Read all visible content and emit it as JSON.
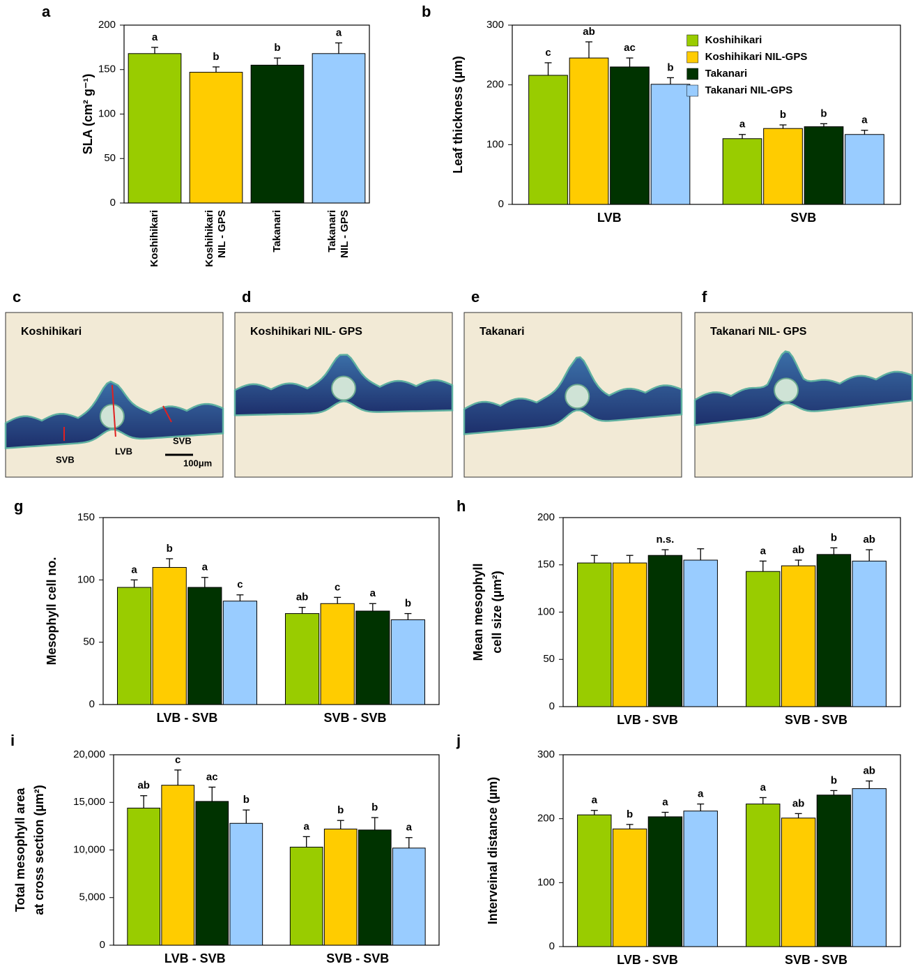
{
  "chart_data": [
    {
      "type": "bar",
      "panel": "a",
      "ylabel": [
        "SLA (cm² g⁻¹)"
      ],
      "categories": [
        [
          "Koshihikari"
        ],
        [
          "Koshihikari",
          "NIL - GPS"
        ],
        [
          "Takanari"
        ],
        [
          "Takanari",
          "NIL - GPS"
        ]
      ],
      "values": [
        168,
        147,
        155,
        168
      ],
      "errors": [
        7,
        6,
        8,
        12
      ],
      "letters": [
        "a",
        "b",
        "b",
        "a"
      ],
      "colors": [
        "#99cc00",
        "#ffcc00",
        "#003300",
        "#99ccff"
      ],
      "ylim": [
        0,
        200
      ],
      "yticks": [
        0,
        50,
        100,
        150,
        200
      ]
    },
    {
      "type": "bar",
      "panel": "b",
      "ylabel": [
        "Leaf thickness (µm)"
      ],
      "categories": [
        "LVB",
        "SVB"
      ],
      "legend": "upper right",
      "series": [
        {
          "name": "Koshihikari",
          "color": "#99cc00",
          "values": [
            216,
            110
          ],
          "errors": [
            21,
            7
          ],
          "letters": [
            "c",
            "a"
          ]
        },
        {
          "name": "Koshihikari NIL-GPS",
          "color": "#ffcc00",
          "values": [
            245,
            127
          ],
          "errors": [
            27,
            6
          ],
          "letters": [
            "ab",
            "b"
          ]
        },
        {
          "name": "Takanari",
          "color": "#003300",
          "values": [
            230,
            130
          ],
          "errors": [
            15,
            5
          ],
          "letters": [
            "ac",
            "b"
          ]
        },
        {
          "name": "Takanari NIL-GPS",
          "color": "#99ccff",
          "values": [
            201,
            117
          ],
          "errors": [
            11,
            7
          ],
          "letters": [
            "b",
            "a"
          ]
        }
      ],
      "ylim": [
        0,
        300
      ],
      "yticks": [
        0,
        100,
        200,
        300
      ]
    },
    {
      "type": "bar",
      "panel": "g",
      "ylabel": [
        "Mesophyll cell no."
      ],
      "categories": [
        "LVB - SVB",
        "SVB - SVB"
      ],
      "series": [
        {
          "name": "Koshihikari",
          "color": "#99cc00",
          "values": [
            94,
            73
          ],
          "errors": [
            6,
            5
          ],
          "letters": [
            "a",
            "ab"
          ]
        },
        {
          "name": "Koshihikari NIL-GPS",
          "color": "#ffcc00",
          "values": [
            110,
            81
          ],
          "errors": [
            7,
            5
          ],
          "letters": [
            "b",
            "c"
          ]
        },
        {
          "name": "Takanari",
          "color": "#003300",
          "values": [
            94,
            75
          ],
          "errors": [
            8,
            6
          ],
          "letters": [
            "a",
            "a"
          ]
        },
        {
          "name": "Takanari NIL-GPS",
          "color": "#99ccff",
          "values": [
            83,
            68
          ],
          "errors": [
            5,
            5
          ],
          "letters": [
            "c",
            "b"
          ]
        }
      ],
      "ylim": [
        0,
        150
      ],
      "yticks": [
        0,
        50,
        100,
        150
      ]
    },
    {
      "type": "bar",
      "panel": "h",
      "ylabel": [
        "Mean mesophyll",
        "cell size (µm²)"
      ],
      "categories": [
        "LVB - SVB",
        "SVB - SVB"
      ],
      "series": [
        {
          "name": "Koshihikari",
          "color": "#99cc00",
          "values": [
            152,
            143
          ],
          "errors": [
            8,
            11
          ],
          "letters": [
            null,
            "a"
          ]
        },
        {
          "name": "Koshihikari NIL-GPS",
          "color": "#ffcc00",
          "values": [
            152,
            149
          ],
          "errors": [
            8,
            6
          ],
          "letters": [
            null,
            "ab"
          ]
        },
        {
          "name": "Takanari",
          "color": "#003300",
          "values": [
            160,
            161
          ],
          "errors": [
            6,
            7
          ],
          "letters": [
            "n.s.",
            "b"
          ]
        },
        {
          "name": "Takanari NIL-GPS",
          "color": "#99ccff",
          "values": [
            155,
            154
          ],
          "errors": [
            12,
            12
          ],
          "letters": [
            null,
            "ab"
          ]
        }
      ],
      "ylim": [
        0,
        200
      ],
      "yticks": [
        0,
        50,
        100,
        150,
        200
      ]
    },
    {
      "type": "bar",
      "panel": "i",
      "ylabel": [
        "Total mesophyll area",
        "at cross section  (µm²)"
      ],
      "categories": [
        "LVB - SVB",
        "SVB - SVB"
      ],
      "series": [
        {
          "name": "Koshihikari",
          "color": "#99cc00",
          "values": [
            14400,
            10300
          ],
          "errors": [
            1300,
            1100
          ],
          "letters": [
            "ab",
            "a"
          ]
        },
        {
          "name": "Koshihikari NIL-GPS",
          "color": "#ffcc00",
          "values": [
            16800,
            12200
          ],
          "errors": [
            1600,
            900
          ],
          "letters": [
            "c",
            "b"
          ]
        },
        {
          "name": "Takanari",
          "color": "#003300",
          "values": [
            15100,
            12100
          ],
          "errors": [
            1500,
            1300
          ],
          "letters": [
            "ac",
            "b"
          ]
        },
        {
          "name": "Takanari NIL-GPS",
          "color": "#99ccff",
          "values": [
            12800,
            10200
          ],
          "errors": [
            1400,
            1100
          ],
          "letters": [
            "b",
            "a"
          ]
        }
      ],
      "ylim": [
        0,
        20000
      ],
      "yticks": [
        0,
        {
          "value": 5000,
          "label": "5,000"
        },
        {
          "value": 10000,
          "label": "10,000"
        },
        {
          "value": 15000,
          "label": "15,000"
        },
        {
          "value": 20000,
          "label": "20,000"
        }
      ]
    },
    {
      "type": "bar",
      "panel": "j",
      "ylabel": [
        "Interveinal distance (µm)"
      ],
      "categories": [
        "LVB - SVB",
        "SVB - SVB"
      ],
      "series": [
        {
          "name": "Koshihikari",
          "color": "#99cc00",
          "values": [
            206,
            223
          ],
          "errors": [
            7,
            10
          ],
          "letters": [
            "a",
            "a"
          ]
        },
        {
          "name": "Koshihikari NIL-GPS",
          "color": "#ffcc00",
          "values": [
            184,
            201
          ],
          "errors": [
            7,
            7
          ],
          "letters": [
            "b",
            "ab"
          ]
        },
        {
          "name": "Takanari",
          "color": "#003300",
          "values": [
            203,
            237
          ],
          "errors": [
            7,
            7
          ],
          "letters": [
            "a",
            "b"
          ]
        },
        {
          "name": "Takanari NIL-GPS",
          "color": "#99ccff",
          "values": [
            212,
            247
          ],
          "errors": [
            11,
            12
          ],
          "letters": [
            "a",
            "ab"
          ]
        }
      ],
      "ylim": [
        0,
        300
      ],
      "yticks": [
        0,
        100,
        200,
        300
      ]
    }
  ],
  "micrographs": [
    {
      "panel": "c",
      "title": "Koshihikari",
      "labels": [
        "SVB",
        "LVB",
        "SVB",
        "100μm"
      ]
    },
    {
      "panel": "d",
      "title": "Koshihikari NIL- GPS"
    },
    {
      "panel": "e",
      "title": "Takanari"
    },
    {
      "panel": "f",
      "title": "Takanari NIL- GPS"
    }
  ]
}
